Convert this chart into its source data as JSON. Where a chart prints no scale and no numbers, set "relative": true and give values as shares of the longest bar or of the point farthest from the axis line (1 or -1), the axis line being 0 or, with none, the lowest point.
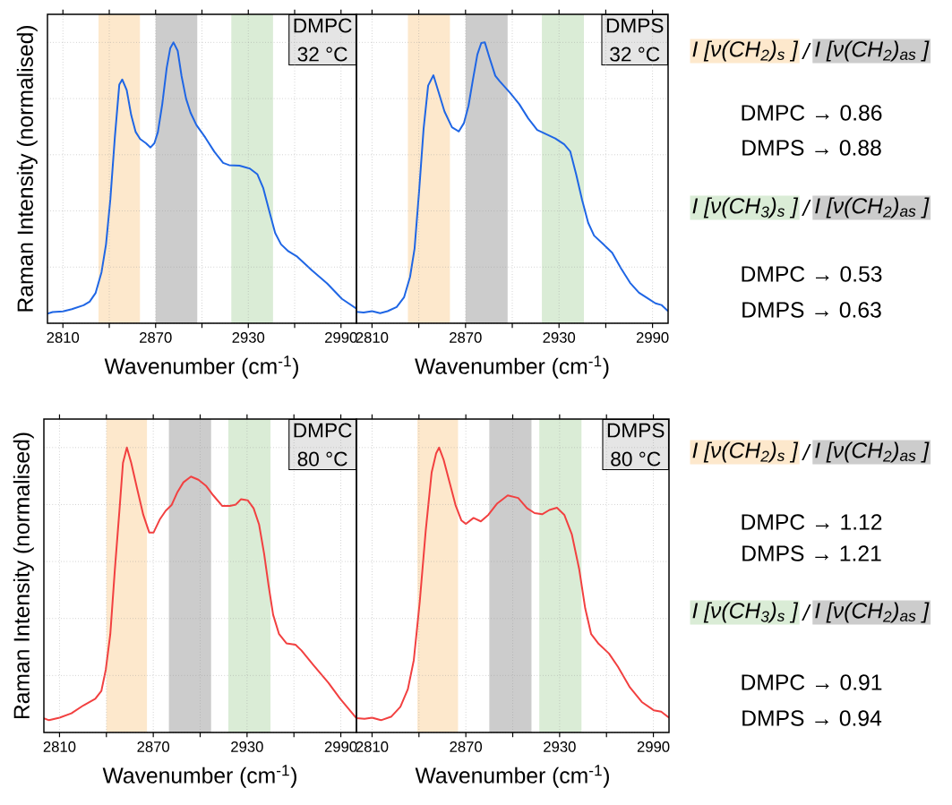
{
  "chart_data": [
    {
      "type": "line",
      "relative": true,
      "xlabel": "Wavenumber (cm$^{-1}$)",
      "ylabel": "Raman Intensity (normalised)",
      "xlim": [
        2800,
        3000
      ],
      "xticks": [
        2810,
        {
          "value": 2840,
          "label": null
        },
        2870,
        {
          "value": 2900,
          "label": null
        },
        2930,
        {
          "value": 2960,
          "label": null
        },
        2990
      ],
      "tick_labels": "x",
      "grid": true,
      "bands": [
        {
          "axis": "x",
          "from": 2833,
          "to": 2860,
          "color": "#fde8cc"
        },
        {
          "axis": "x",
          "from": 2870,
          "to": 2897,
          "color": "#cccccc"
        },
        {
          "axis": "x",
          "from": 2919,
          "to": 2946,
          "color": "#daecd6"
        }
      ],
      "annotations": [
        "DMPC",
        "32 °C"
      ],
      "color": "#1f66e5",
      "x": [
        2800,
        2803.3,
        2810,
        2815.8,
        2823.4,
        2827.3,
        2831.1,
        2835,
        2837.9,
        2840.7,
        2843.6,
        2846.5,
        2848.4,
        2851.3,
        2854.2,
        2857.1,
        2860,
        2863.8,
        2866.7,
        2869.2,
        2871.5,
        2874.3,
        2877.2,
        2879.5,
        2881.6,
        2884.3,
        2886.8,
        2889.7,
        2892.6,
        2896.4,
        2902.2,
        2908,
        2913.7,
        2917.6,
        2924.3,
        2931,
        2935.8,
        2939.7,
        2943.5,
        2947.4,
        2951.2,
        2956,
        2961.7,
        2971.4,
        2981,
        2990.6,
        3000
      ],
      "values": [
        0.034,
        0.04,
        0.042,
        0.05,
        0.064,
        0.077,
        0.107,
        0.182,
        0.281,
        0.441,
        0.661,
        0.85,
        0.868,
        0.83,
        0.741,
        0.681,
        0.656,
        0.641,
        0.626,
        0.641,
        0.681,
        0.78,
        0.91,
        0.98,
        1.0,
        0.97,
        0.88,
        0.8,
        0.75,
        0.706,
        0.661,
        0.611,
        0.571,
        0.563,
        0.561,
        0.551,
        0.531,
        0.481,
        0.401,
        0.321,
        0.281,
        0.256,
        0.237,
        0.187,
        0.142,
        0.087,
        0.052
      ]
    },
    {
      "type": "line",
      "relative": true,
      "xlabel": "Wavenumber (cm$^{-1}$)",
      "xlim": [
        2800,
        3000
      ],
      "xticks": [
        2810,
        {
          "value": 2840,
          "label": null
        },
        2870,
        {
          "value": 2900,
          "label": null
        },
        2930,
        {
          "value": 2960,
          "label": null
        },
        2990
      ],
      "tick_labels": "x",
      "grid": true,
      "bands": [
        {
          "axis": "x",
          "from": 2833,
          "to": 2860,
          "color": "#fde8cc"
        },
        {
          "axis": "x",
          "from": 2870,
          "to": 2897,
          "color": "#cccccc"
        },
        {
          "axis": "x",
          "from": 2919,
          "to": 2946,
          "color": "#daecd6"
        }
      ],
      "annotations": [
        "DMPS",
        "32 °C"
      ],
      "color": "#1f66e5",
      "x": [
        2800,
        2804.6,
        2810,
        2815.2,
        2820,
        2825.8,
        2830.6,
        2834.4,
        2837.3,
        2840.2,
        2843.1,
        2846,
        2849.4,
        2852.6,
        2856.5,
        2861.3,
        2865.7,
        2869,
        2871.9,
        2874.7,
        2877.6,
        2880.1,
        2882.4,
        2885.3,
        2889.1,
        2892,
        2898.7,
        2904.5,
        2910.3,
        2916,
        2921.8,
        2927.6,
        2933.3,
        2937.2,
        2941,
        2944.8,
        2948.7,
        2952.5,
        2958.3,
        2964.1,
        2969.8,
        2975.6,
        2981.3,
        2987.1,
        2991.9,
        2995.7,
        3000
      ],
      "values": [
        0.041,
        0.038,
        0.043,
        0.036,
        0.043,
        0.058,
        0.093,
        0.165,
        0.266,
        0.47,
        0.693,
        0.846,
        0.883,
        0.825,
        0.754,
        0.698,
        0.683,
        0.713,
        0.774,
        0.866,
        0.957,
        0.998,
        1.0,
        0.947,
        0.881,
        0.861,
        0.82,
        0.78,
        0.729,
        0.688,
        0.673,
        0.658,
        0.637,
        0.612,
        0.53,
        0.439,
        0.358,
        0.312,
        0.282,
        0.251,
        0.195,
        0.144,
        0.109,
        0.088,
        0.071,
        0.065,
        0.043
      ]
    },
    {
      "type": "other",
      "annotations": [
        "I [ν(CH$_{2}$)$_{s}$ ]",
        "/",
        "I [ν(CH$_{2}$)$_{as}$ ]",
        "DMPC → 0.86",
        "DMPS → 0.88",
        "I [ν(CH$_{3}$)$_{s}$ ]",
        "/",
        "I [ν(CH$_{2}$)$_{as}$ ]",
        "DMPC → 0.53",
        "DMPS → 0.63"
      ]
    },
    {
      "type": "line",
      "relative": true,
      "xlabel": "Wavenumber (cm$^{-1}$)",
      "ylabel": "Raman Intensity (normalised)",
      "xlim": [
        2800,
        3000
      ],
      "xticks": [
        2810,
        {
          "value": 2840,
          "label": null
        },
        2870,
        {
          "value": 2900,
          "label": null
        },
        2930,
        {
          "value": 2960,
          "label": null
        },
        2990
      ],
      "tick_labels": "x",
      "grid": true,
      "bands": [
        {
          "axis": "x",
          "from": 2840,
          "to": 2866,
          "color": "#fde8cc"
        },
        {
          "axis": "x",
          "from": 2880,
          "to": 2907,
          "color": "#cccccc"
        },
        {
          "axis": "x",
          "from": 2918,
          "to": 2945,
          "color": "#daecd6"
        }
      ],
      "annotations": [
        "DMPC",
        "80 °C"
      ],
      "color": "#f24040",
      "x": [
        2800,
        2803.3,
        2810,
        2817.6,
        2825.3,
        2832.9,
        2836.8,
        2839.6,
        2842.5,
        2845.4,
        2848.3,
        2850.6,
        2853.1,
        2855.9,
        2859.7,
        2863.6,
        2867.4,
        2870.2,
        2874.1,
        2877.9,
        2881.7,
        2885.5,
        2889.3,
        2894.1,
        2898.9,
        2903.7,
        2908.4,
        2914.2,
        2919,
        2922.8,
        2926.2,
        2930.4,
        2934.2,
        2937.7,
        2940.9,
        2943.8,
        2946.7,
        2950.5,
        2955.2,
        2961,
        2964.8,
        2972.4,
        2982,
        2989.6,
        3000
      ],
      "values": [
        0.05,
        0.043,
        0.052,
        0.067,
        0.095,
        0.118,
        0.146,
        0.22,
        0.345,
        0.571,
        0.776,
        0.946,
        1.0,
        0.946,
        0.855,
        0.764,
        0.702,
        0.702,
        0.747,
        0.778,
        0.798,
        0.844,
        0.878,
        0.898,
        0.887,
        0.866,
        0.832,
        0.795,
        0.795,
        0.8,
        0.819,
        0.815,
        0.787,
        0.73,
        0.628,
        0.515,
        0.413,
        0.345,
        0.313,
        0.308,
        0.288,
        0.237,
        0.175,
        0.118,
        0.05
      ]
    },
    {
      "type": "line",
      "relative": true,
      "xlabel": "Wavenumber (cm$^{-1}$)",
      "xlim": [
        2800,
        3000
      ],
      "xticks": [
        2810,
        {
          "value": 2840,
          "label": null
        },
        2870,
        {
          "value": 2900,
          "label": null
        },
        2930,
        {
          "value": 2960,
          "label": null
        },
        2990
      ],
      "tick_labels": "x",
      "grid": true,
      "bands": [
        {
          "axis": "x",
          "from": 2839,
          "to": 2865,
          "color": "#fde8cc"
        },
        {
          "axis": "x",
          "from": 2885,
          "to": 2912,
          "color": "#cccccc"
        },
        {
          "axis": "x",
          "from": 2917,
          "to": 2944,
          "color": "#daecd6"
        }
      ],
      "annotations": [
        "DMPS",
        "80 °C"
      ],
      "color": "#f24040",
      "x": [
        2800,
        2805.2,
        2810,
        2815.7,
        2822.4,
        2828.1,
        2832.9,
        2836.7,
        2840.5,
        2844.3,
        2848.1,
        2851,
        2852.9,
        2855.8,
        2859.6,
        2863.4,
        2867.2,
        2870.1,
        2874.9,
        2879.6,
        2884.4,
        2890.1,
        2896.8,
        2903.5,
        2909.2,
        2914,
        2918.8,
        2923.5,
        2928.3,
        2933,
        2937.8,
        2942.6,
        2946.4,
        2950.2,
        2955,
        2961.6,
        2967.3,
        2975,
        2982.6,
        2990.2,
        2995,
        3000
      ],
      "values": [
        0.05,
        0.048,
        0.052,
        0.043,
        0.056,
        0.09,
        0.152,
        0.254,
        0.458,
        0.707,
        0.912,
        0.98,
        1.0,
        0.957,
        0.878,
        0.798,
        0.744,
        0.732,
        0.753,
        0.741,
        0.764,
        0.804,
        0.832,
        0.823,
        0.787,
        0.77,
        0.766,
        0.781,
        0.789,
        0.764,
        0.696,
        0.571,
        0.435,
        0.345,
        0.311,
        0.277,
        0.231,
        0.158,
        0.107,
        0.078,
        0.073,
        0.052
      ]
    },
    {
      "type": "other",
      "annotations": [
        "I [ν(CH$_{2}$)$_{s}$ ]",
        "/",
        "I [ν(CH$_{2}$)$_{as}$ ]",
        "DMPC → 1.12",
        "DMPS → 1.21",
        "I [ν(CH$_{3}$)$_{s}$ ]",
        "/",
        "I [ν(CH$_{2}$)$_{as}$ ]",
        "DMPC → 0.91",
        "DMPS → 0.94"
      ]
    }
  ]
}
